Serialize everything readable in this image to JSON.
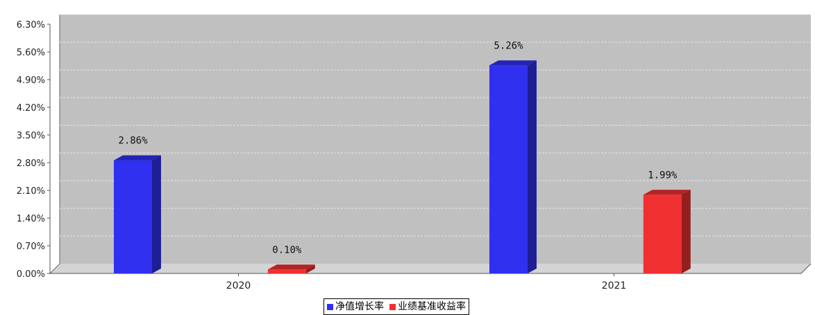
{
  "chart_data": {
    "type": "bar",
    "categories": [
      "2020",
      "2021"
    ],
    "series": [
      {
        "name": "净值增长率",
        "values": [
          2.86,
          5.26
        ],
        "color": "#3030f0",
        "labels": [
          "2.86%",
          "5.26%"
        ]
      },
      {
        "name": "业绩基准收益率",
        "values": [
          0.1,
          1.99
        ],
        "color": "#f03030",
        "labels": [
          "0.10%",
          "1.99%"
        ]
      }
    ],
    "yticks": [
      {
        "value": 0.0,
        "label": "0.00%"
      },
      {
        "value": 0.7,
        "label": "0.70%"
      },
      {
        "value": 1.4,
        "label": "1.40%"
      },
      {
        "value": 2.1,
        "label": "2.10%"
      },
      {
        "value": 2.8,
        "label": "2.80%"
      },
      {
        "value": 3.5,
        "label": "3.50%"
      },
      {
        "value": 4.2,
        "label": "4.20%"
      },
      {
        "value": 4.9,
        "label": "4.90%"
      },
      {
        "value": 5.6,
        "label": "5.60%"
      },
      {
        "value": 6.3,
        "label": "6.30%"
      }
    ],
    "ylim": [
      0,
      6.3
    ],
    "grid": true,
    "legend_position": "bottom-center",
    "style": "3d-bar",
    "plot_background": "#c0c0c0"
  }
}
